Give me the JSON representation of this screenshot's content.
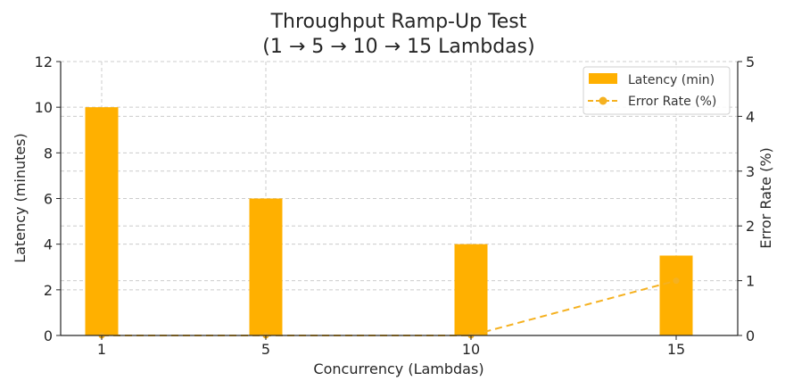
{
  "chart_data": {
    "type": "bar",
    "title_line1": "Throughput Ramp-Up Test",
    "title_line2": "(1 → 5 → 10 → 15 Lambdas)",
    "xlabel": "Concurrency (Lambdas)",
    "ylabel_left": "Latency (minutes)",
    "ylabel_right": "Error Rate (%)",
    "x": [
      1,
      5,
      10,
      15
    ],
    "x_tick_labels": [
      "1",
      "5",
      "10",
      "15"
    ],
    "xlim": [
      0,
      16.5
    ],
    "ylim_left": [
      0,
      12
    ],
    "ylim_right": [
      0,
      5
    ],
    "y_ticks_left": [
      "0",
      "2",
      "4",
      "6",
      "8",
      "10",
      "12"
    ],
    "y_ticks_right": [
      "0",
      "1",
      "2",
      "3",
      "4",
      "5"
    ],
    "grid": true,
    "legend_position": "upper right",
    "series": [
      {
        "name": "Latency (min)",
        "kind": "bar",
        "axis": "left",
        "color": "#FFB000",
        "values": [
          10,
          6,
          4,
          3.5
        ]
      },
      {
        "name": "Error Rate (%)",
        "kind": "line",
        "axis": "right",
        "style": "dashed",
        "marker": "circle",
        "color": "#F5B120",
        "values": [
          0,
          0,
          0,
          1
        ]
      }
    ]
  }
}
